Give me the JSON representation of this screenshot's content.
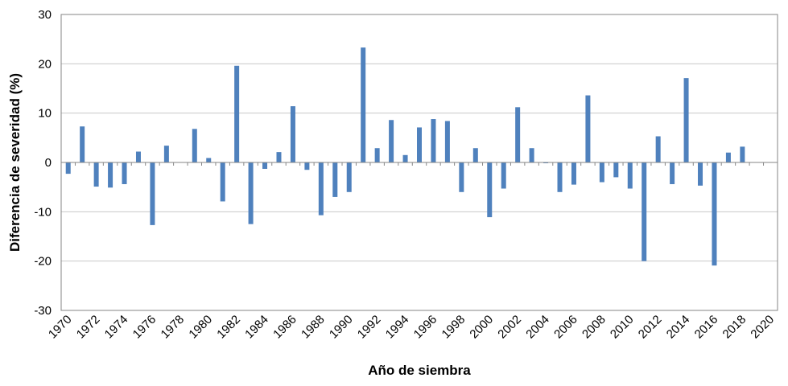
{
  "chart_data": {
    "type": "bar",
    "title": "",
    "xlabel": "Año de siembra",
    "ylabel": "Diferencia de severidad (%)",
    "ylim": [
      -30,
      30
    ],
    "yticks": [
      -30,
      -20,
      -10,
      0,
      10,
      20,
      30
    ],
    "xlim": [
      1970,
      2020
    ],
    "xticks": [
      1970,
      1972,
      1974,
      1976,
      1978,
      1980,
      1982,
      1984,
      1986,
      1988,
      1990,
      1992,
      1994,
      1996,
      1998,
      2000,
      2002,
      2004,
      2006,
      2008,
      2010,
      2012,
      2014,
      2016,
      2018,
      2020
    ],
    "grid": true,
    "bar_color": "#4f81bd",
    "x": [
      1970,
      1971,
      1972,
      1973,
      1974,
      1975,
      1976,
      1977,
      1978,
      1979,
      1980,
      1981,
      1982,
      1983,
      1984,
      1985,
      1986,
      1987,
      1988,
      1989,
      1990,
      1991,
      1992,
      1993,
      1994,
      1995,
      1996,
      1997,
      1998,
      1999,
      2000,
      2001,
      2002,
      2003,
      2004,
      2005,
      2006,
      2007,
      2008,
      2009,
      2010,
      2011,
      2012,
      2013,
      2014,
      2015,
      2016,
      2017,
      2018,
      2019
    ],
    "values": [
      -2.3,
      7.3,
      -4.9,
      -5.1,
      -4.4,
      2.2,
      -12.7,
      3.4,
      0,
      6.8,
      0.9,
      -7.9,
      19.6,
      -12.5,
      -1.3,
      2.1,
      11.4,
      -1.5,
      -10.7,
      -7.0,
      -6.0,
      23.3,
      2.9,
      8.6,
      1.5,
      7.1,
      8.8,
      8.4,
      -6.0,
      2.9,
      -11.1,
      -5.3,
      11.2,
      2.9,
      -0.1,
      -6.0,
      -4.5,
      13.6,
      -4.0,
      -3.0,
      -5.3,
      -20.0,
      5.3,
      -4.4,
      17.1,
      -4.7,
      -20.9,
      2.0,
      3.2,
      0
    ]
  }
}
